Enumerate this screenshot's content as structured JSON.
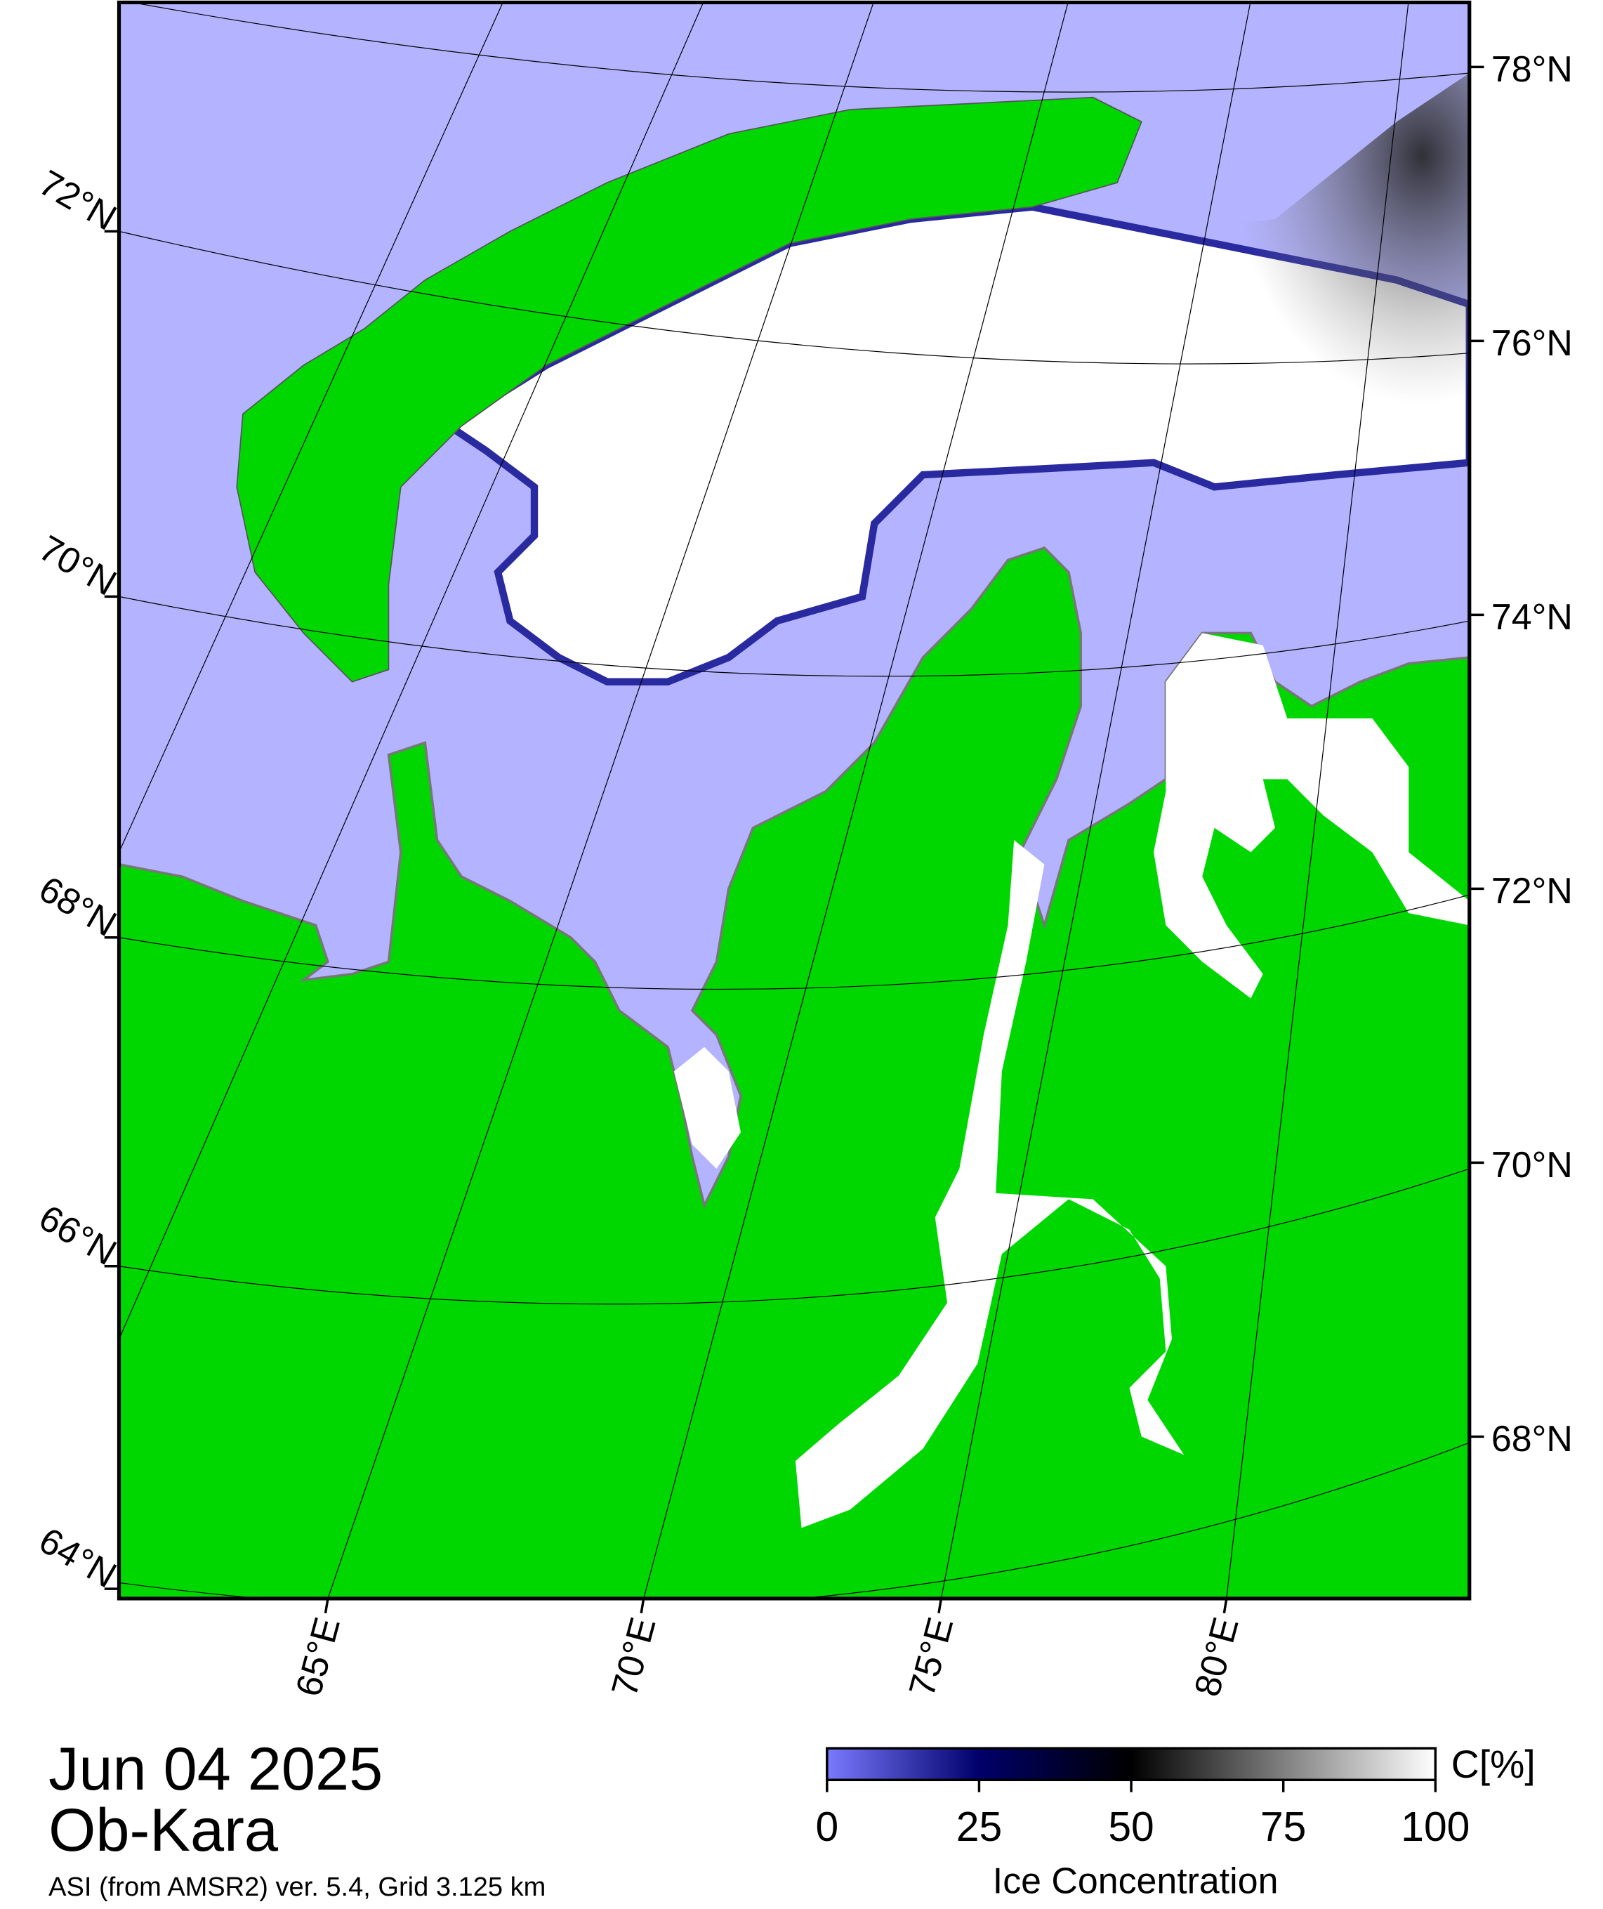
{
  "title": {
    "date": "Jun 04 2025",
    "region": "Ob-Kara",
    "source": "ASI (from AMSR2) ver. 5.4,  Grid 3.125 km"
  },
  "colorbar": {
    "label": "Ice Concentration",
    "unit": "C[%]",
    "range": [
      0,
      100
    ],
    "ticks": [
      0,
      25,
      50,
      75,
      100
    ]
  },
  "graticule": {
    "right_labels": [
      "78°N",
      "76°N",
      "74°N",
      "72°N",
      "70°N",
      "68°N"
    ],
    "left_labels": [
      "72°N",
      "70°N",
      "68°N",
      "66°N",
      "64°N"
    ],
    "bottom_labels": [
      "65°E",
      "70°E",
      "75°E",
      "80°E"
    ]
  }
}
